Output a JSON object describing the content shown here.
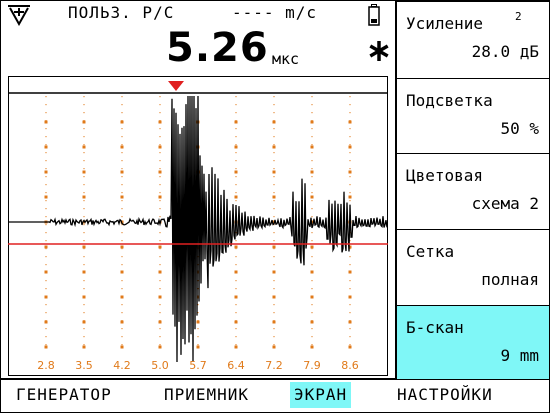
{
  "header": {
    "mode": "ПОЛЬЗ. Р/С",
    "velocity": "---- m/c",
    "reading_value": "5.26",
    "reading_unit": "мкс"
  },
  "icons": {
    "logo": "transducer-logo-icon",
    "battery": "battery-icon",
    "freeze": "asterisk-icon"
  },
  "plot": {
    "x_ticks": [
      "2.8",
      "3.5",
      "4.2",
      "5.0",
      "5.7",
      "6.4",
      "7.2",
      "7.9",
      "8.6"
    ],
    "gate_color": "#e02020",
    "marker_color": "#e02020",
    "tick_label_color": "#e07a1a"
  },
  "menu": [
    {
      "label": "Усиление",
      "sup": "2",
      "value": "28.0 дБ",
      "active": false
    },
    {
      "label": "Подсветка",
      "sup": "",
      "value": "50 %",
      "active": false
    },
    {
      "label": "Цветовая",
      "sup": "",
      "value": "схема 2",
      "active": false
    },
    {
      "label": "Сетка",
      "sup": "",
      "value": "полная",
      "active": false
    },
    {
      "label": "Б-скан",
      "sup": "",
      "value": "9 mm",
      "active": true
    }
  ],
  "tabs": [
    {
      "label": "ГЕНЕРАТОР",
      "active": false
    },
    {
      "label": "ПРИЕМНИК",
      "active": false
    },
    {
      "label": "ЭКРАН",
      "active": true
    },
    {
      "label": "НАСТРОЙКИ",
      "active": false
    }
  ]
}
